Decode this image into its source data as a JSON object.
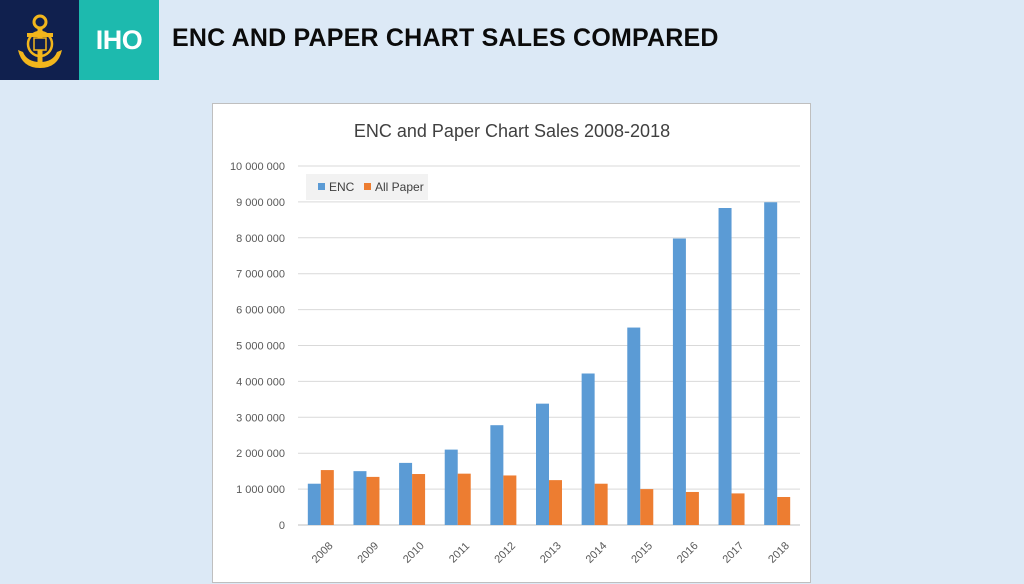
{
  "slide": {
    "logo_text": "IHO",
    "title": "ENC AND PAPER CHART SALES COMPARED"
  },
  "colors": {
    "navy": "#10204e",
    "teal": "#1dbaae",
    "gold": "#f2b61c",
    "background": "#dce9f6"
  },
  "chart_data": {
    "type": "bar",
    "title": "ENC and Paper Chart Sales 2008-2018",
    "xlabel": "",
    "ylabel": "",
    "categories": [
      "2008",
      "2009",
      "2010",
      "2011",
      "2012",
      "2013",
      "2014",
      "2015",
      "2016",
      "2017",
      "2018"
    ],
    "series": [
      {
        "name": "ENC",
        "color": "#5b9bd5",
        "values": [
          1150000,
          1500000,
          1730000,
          2100000,
          2780000,
          3380000,
          4220000,
          5500000,
          7980000,
          8830000,
          8990000
        ]
      },
      {
        "name": "All Paper",
        "color": "#ed7d31",
        "values": [
          1530000,
          1340000,
          1420000,
          1430000,
          1380000,
          1250000,
          1150000,
          1000000,
          920000,
          880000,
          780000
        ]
      }
    ],
    "ylim": [
      0,
      10000000
    ],
    "yticks": [
      0,
      1000000,
      2000000,
      3000000,
      4000000,
      5000000,
      6000000,
      7000000,
      8000000,
      9000000,
      10000000
    ],
    "ytick_labels": [
      "0",
      "1 000 000",
      "2 000 000",
      "3 000 000",
      "4 000 000",
      "5 000 000",
      "6 000 000",
      "7 000 000",
      "8 000 000",
      "9 000 000",
      "10 000 000"
    ],
    "grid": true,
    "legend_position": "top-left"
  }
}
